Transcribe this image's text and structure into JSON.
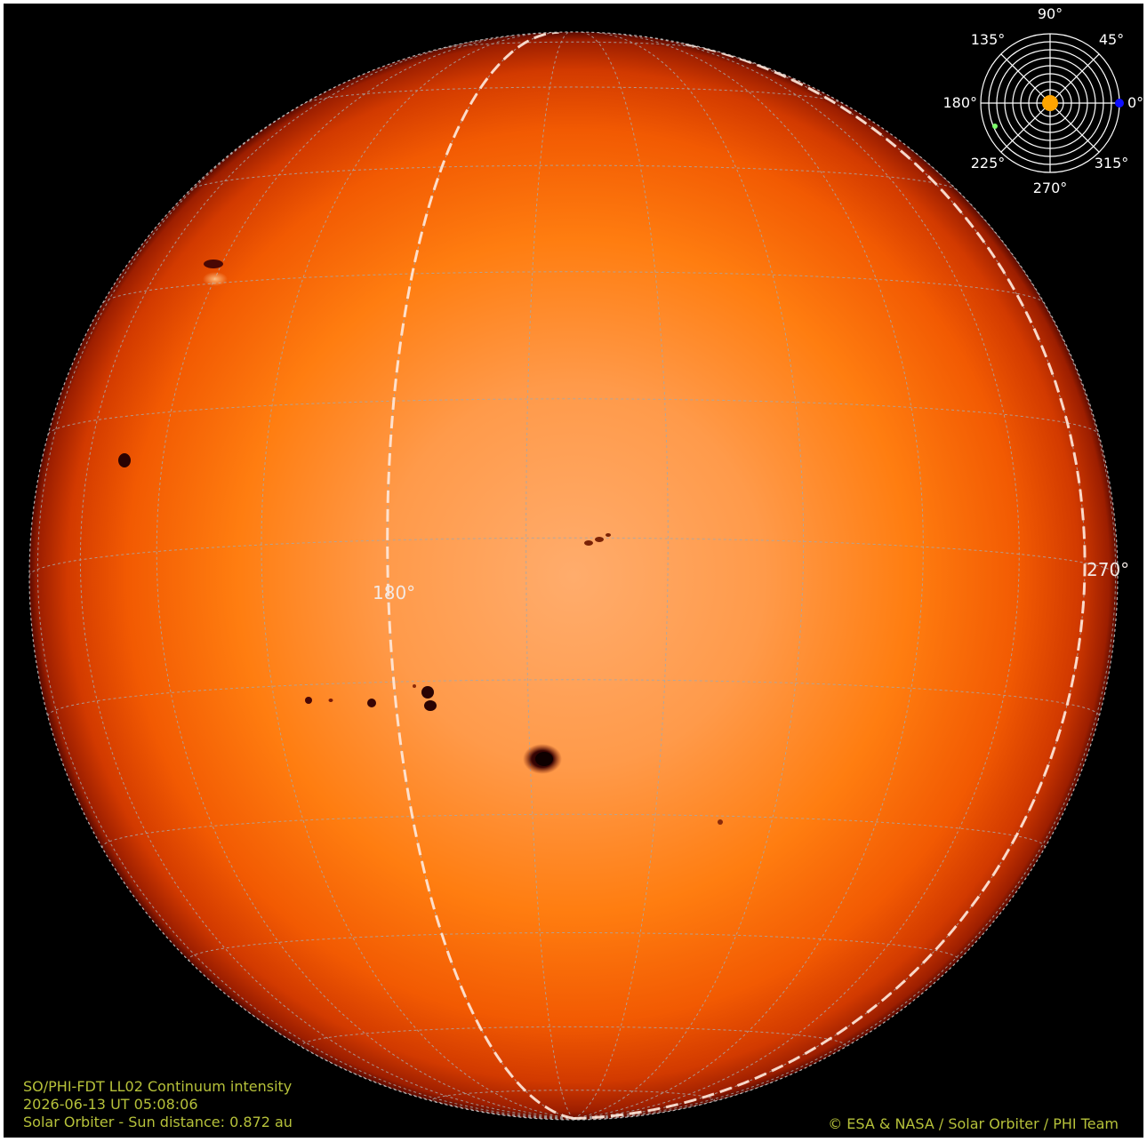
{
  "image": {
    "instrument_label": "SO/PHI-FDT LL02 Continuum intensity",
    "timestamp": "2026-06-13 UT 05:08:06",
    "distance_label": "Solar Orbiter - Sun distance: 0.872 au",
    "credit": "© ESA & NASA / Solar Orbiter / PHI Team",
    "meridian_labels": [
      "180°",
      "270°"
    ]
  },
  "position_dial": {
    "angle_labels": [
      "90°",
      "45°",
      "0°",
      "315°",
      "270°",
      "225°",
      "180°",
      "135°"
    ],
    "observer_colors": {
      "sun": "#ffa500",
      "earth": "#1010ff",
      "other": "#7cfc6a"
    }
  },
  "colors": {
    "caption_text": "#b6c13a",
    "disk_center": "#ffa868",
    "disk_mid": "#ff7a0a",
    "disk_limb": "#c42a00",
    "disk_edge": "#5a0a00",
    "grid": "#a8a8a8",
    "meridian_dashed": "#ffe9dc",
    "sunspot": "#3a0504",
    "background": "#000000"
  }
}
